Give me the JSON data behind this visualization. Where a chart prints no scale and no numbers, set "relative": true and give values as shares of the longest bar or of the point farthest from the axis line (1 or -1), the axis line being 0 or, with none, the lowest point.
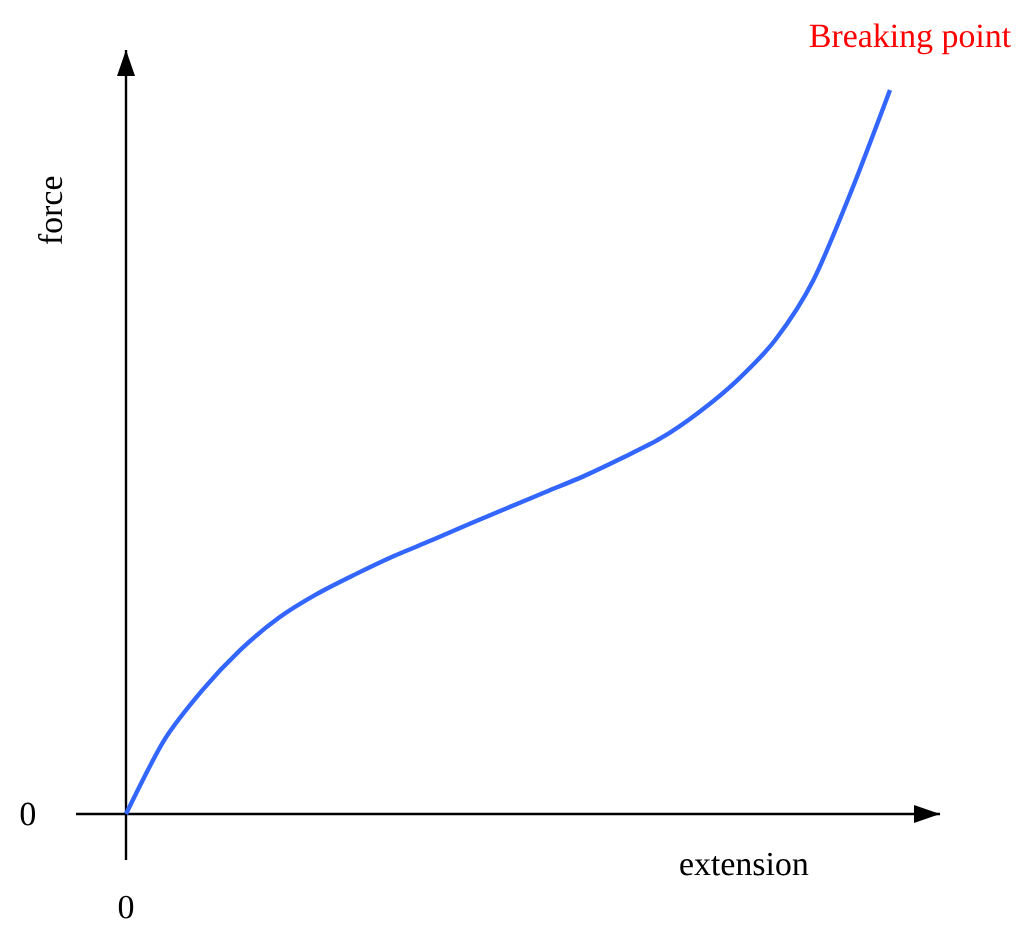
{
  "chart_data": {
    "type": "line",
    "relative": true,
    "color": "#3366ff",
    "xlabel": "extension",
    "ylabel": "force",
    "categories": [
      null,
      null,
      null,
      null,
      null,
      null,
      null,
      null,
      null,
      null,
      null,
      null,
      null,
      null,
      null,
      null,
      null,
      null,
      null,
      null,
      null
    ],
    "values": [
      0,
      0.102,
      0.171,
      0.227,
      0.271,
      0.304,
      0.331,
      0.356,
      0.378,
      0.401,
      0.423,
      0.445,
      0.467,
      0.492,
      0.519,
      0.555,
      0.599,
      0.655,
      0.738,
      0.862,
      1
    ],
    "annotations": [
      "Breaking point",
      "0",
      "0"
    ]
  }
}
